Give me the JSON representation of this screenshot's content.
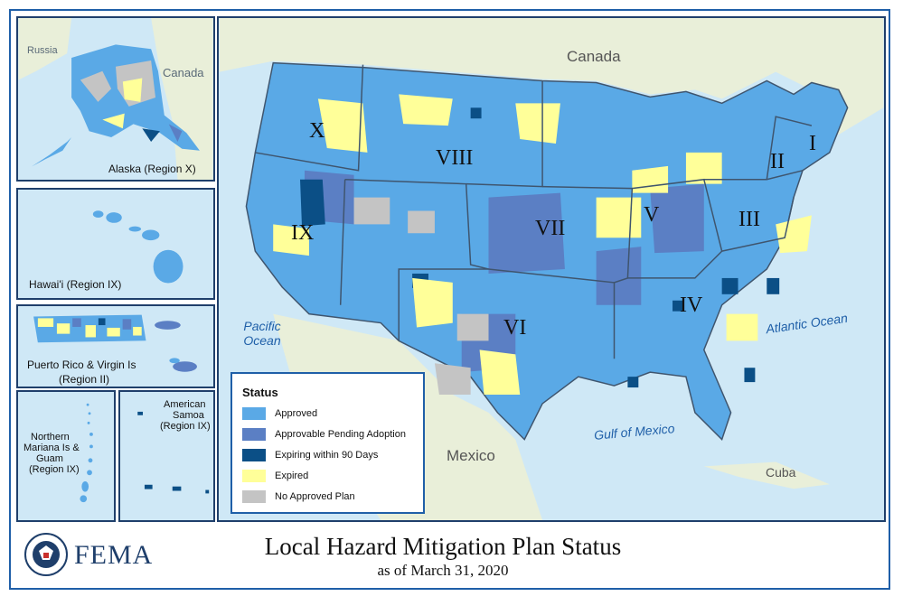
{
  "title": "Local Hazard Mitigation Plan Status",
  "subtitle": "as of March 31, 2020",
  "agency": "FEMA",
  "insets": {
    "alaska": {
      "label": "Alaska (Region X)",
      "russia": "Russia",
      "canada": "Canada"
    },
    "hawaii": {
      "label": "Hawai'i (Region IX)"
    },
    "puerto_rico": {
      "label_line1": "Puerto Rico & Virgin Is",
      "label_line2": "(Region II)"
    },
    "mariana": {
      "line1": "Northern",
      "line2": "Mariana Is &",
      "line3": "Guam",
      "line4": "(Region IX)"
    },
    "samoa": {
      "line1": "American",
      "line2": "Samoa",
      "line3": "(Region IX)"
    }
  },
  "main_map": {
    "countries": {
      "canada": "Canada",
      "mexico": "Mexico",
      "cuba": "Cuba"
    },
    "oceans": {
      "pacific_line1": "Pacific",
      "pacific_line2": "Ocean",
      "atlantic": "Atlantic Ocean",
      "gulf": "Gulf of Mexico"
    },
    "regions": [
      "I",
      "II",
      "III",
      "IV",
      "V",
      "VI",
      "VII",
      "VIII",
      "IX",
      "X"
    ]
  },
  "legend": {
    "title": "Status",
    "items": [
      {
        "label": "Approved",
        "color": "#5aa9e6"
      },
      {
        "label": "Approvable Pending Adoption",
        "color": "#5b7fc4"
      },
      {
        "label": "Expiring within 90 Days",
        "color": "#0b4f86"
      },
      {
        "label": "Expired",
        "color": "#ffff99"
      },
      {
        "label": "No Approved Plan",
        "color": "#c4c4c4"
      }
    ]
  },
  "colors": {
    "approved": "#5aa9e6",
    "pending": "#5b7fc4",
    "expiring": "#0b4f86",
    "expired": "#ffff99",
    "none": "#c4c4c4",
    "water": "#cfe8f6",
    "foreign_land": "#e9efd9",
    "frame": "#1f5fa8"
  }
}
